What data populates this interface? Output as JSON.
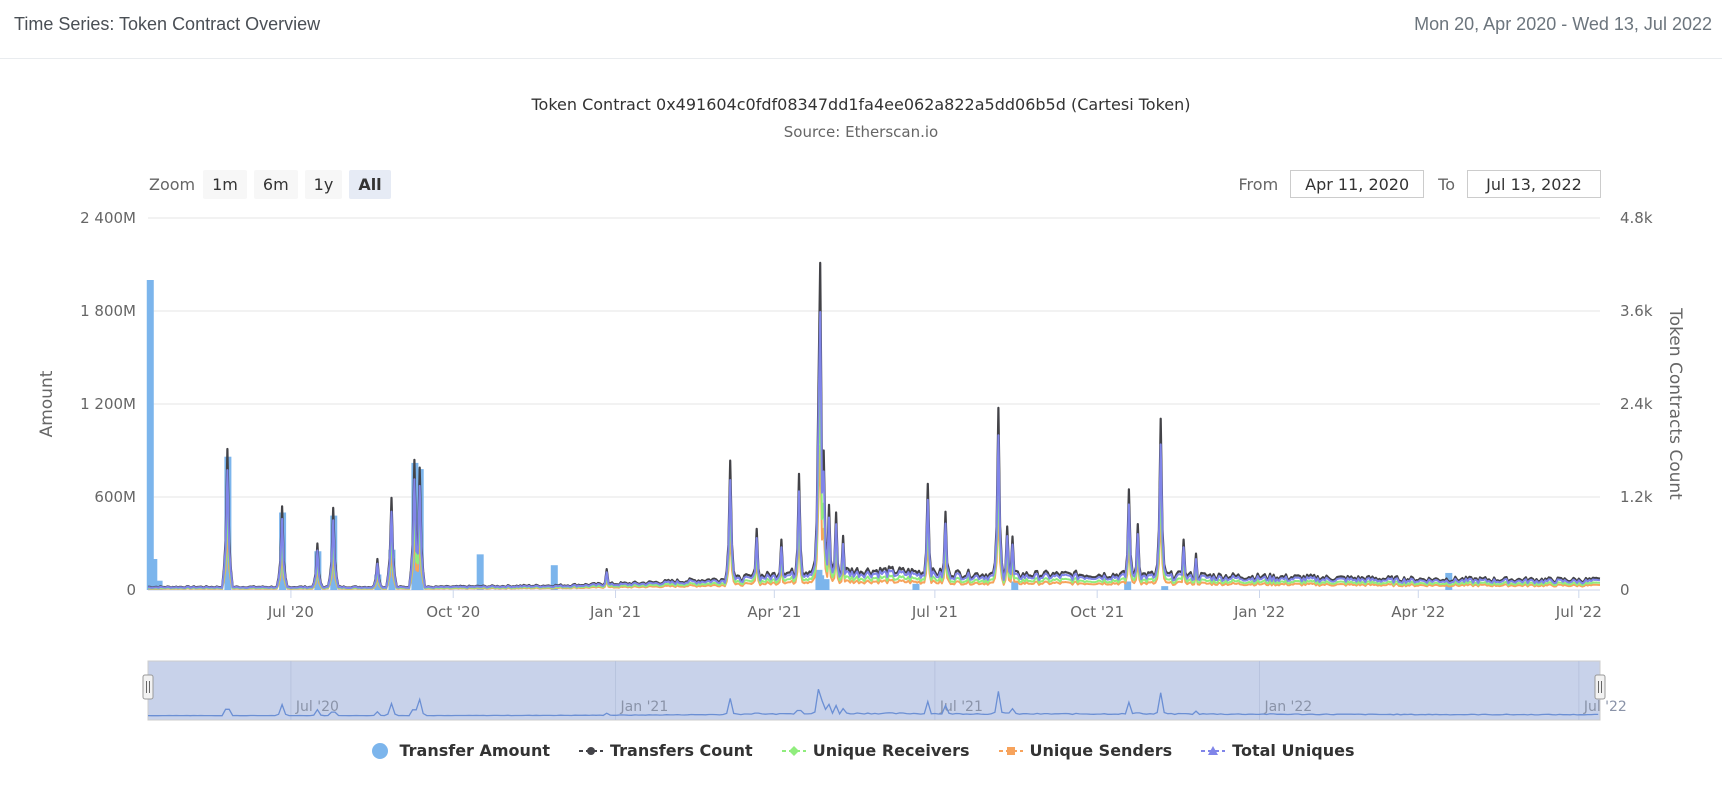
{
  "header": {
    "title": "Time Series: Token Contract Overview",
    "date_range": "Mon 20, Apr 2020 - Wed 13, Jul 2022"
  },
  "zoom": {
    "label": "Zoom",
    "buttons": [
      "1m",
      "6m",
      "1y",
      "All"
    ],
    "active": "All"
  },
  "range": {
    "from_label": "From",
    "from_value": "Apr 11, 2020",
    "to_label": "To",
    "to_value": "Jul 13, 2022"
  },
  "colors": {
    "transfer_amount": "#7cb5ec",
    "transfers_count": "#434348",
    "unique_receivers": "#90ed7d",
    "unique_senders": "#f7a35c",
    "total_uniques": "#8085e9",
    "navigator_mask": "#c8d2ea",
    "navigator_line": "#6b8fd4",
    "grid": "#e6e6e6"
  },
  "chart_data": {
    "type": "line",
    "title": "Token Contract 0x491604c0fdf08347dd1fa4ee062a822a5dd06b5d (Cartesi Token)",
    "subtitle": "Source: Etherscan.io",
    "x_range": [
      "2020-04-11",
      "2022-07-13"
    ],
    "x_ticks": [
      {
        "date": "2020-07-01",
        "label": "Jul '20"
      },
      {
        "date": "2020-10-01",
        "label": "Oct '20"
      },
      {
        "date": "2021-01-01",
        "label": "Jan '21"
      },
      {
        "date": "2021-04-01",
        "label": "Apr '21"
      },
      {
        "date": "2021-07-01",
        "label": "Jul '21"
      },
      {
        "date": "2021-10-01",
        "label": "Oct '21"
      },
      {
        "date": "2022-01-01",
        "label": "Jan '22"
      },
      {
        "date": "2022-04-01",
        "label": "Apr '22"
      },
      {
        "date": "2022-07-01",
        "label": "Jul '22"
      }
    ],
    "y_left": {
      "label": "Amount",
      "range": [
        0,
        2400
      ],
      "ticks": [
        {
          "value": 0,
          "label": "0"
        },
        {
          "value": 600,
          "label": "600M"
        },
        {
          "value": 1200,
          "label": "1 200M"
        },
        {
          "value": 1800,
          "label": "1 800M"
        },
        {
          "value": 2400,
          "label": "2 400M"
        }
      ]
    },
    "y_right": {
      "label": "Token Contracts Count",
      "range": [
        0,
        4800
      ],
      "ticks": [
        {
          "value": 0,
          "label": "0"
        },
        {
          "value": 1200,
          "label": "1.2k"
        },
        {
          "value": 2400,
          "label": "2.4k"
        },
        {
          "value": 3600,
          "label": "3.6k"
        },
        {
          "value": 4800,
          "label": "4.8k"
        }
      ]
    },
    "navigator_ticks": [
      "Jul '20",
      "Jan '21",
      "Jul '21",
      "Jan '22",
      "Jul '22"
    ],
    "series": [
      {
        "name": "Transfer Amount",
        "axis": "left",
        "style": "column",
        "points": [
          [
            "2020-04-12",
            2000
          ],
          [
            "2020-04-14",
            200
          ],
          [
            "2020-04-17",
            60
          ],
          [
            "2020-05-26",
            860
          ],
          [
            "2020-06-26",
            500
          ],
          [
            "2020-07-16",
            250
          ],
          [
            "2020-07-25",
            480
          ],
          [
            "2020-08-19",
            100
          ],
          [
            "2020-08-27",
            260
          ],
          [
            "2020-09-09",
            820
          ],
          [
            "2020-09-12",
            780
          ],
          [
            "2020-10-16",
            230
          ],
          [
            "2020-11-27",
            160
          ],
          [
            "2021-04-26",
            130
          ],
          [
            "2021-04-27",
            95
          ],
          [
            "2021-04-30",
            70
          ],
          [
            "2021-06-20",
            40
          ],
          [
            "2021-08-15",
            55
          ],
          [
            "2021-10-18",
            55
          ],
          [
            "2021-11-08",
            25
          ],
          [
            "2022-04-18",
            110
          ]
        ]
      },
      {
        "name": "Transfers Count",
        "axis": "right",
        "style": "line",
        "base": [
          [
            "2020-04-11",
            40
          ],
          [
            "2020-09-20",
            40
          ],
          [
            "2020-12-01",
            60
          ],
          [
            "2021-01-15",
            90
          ],
          [
            "2021-03-10",
            150
          ],
          [
            "2021-04-01",
            200
          ],
          [
            "2021-04-20",
            250
          ],
          [
            "2021-06-01",
            250
          ],
          [
            "2021-08-01",
            200
          ],
          [
            "2021-11-01",
            200
          ],
          [
            "2021-12-15",
            180
          ],
          [
            "2022-02-01",
            160
          ],
          [
            "2022-04-01",
            140
          ],
          [
            "2022-07-13",
            130
          ]
        ],
        "spikes": [
          [
            "2020-05-26",
            1820
          ],
          [
            "2020-06-26",
            1080
          ],
          [
            "2020-07-16",
            600
          ],
          [
            "2020-07-25",
            1060
          ],
          [
            "2020-08-19",
            400
          ],
          [
            "2020-08-27",
            1190
          ],
          [
            "2020-09-09",
            1680
          ],
          [
            "2020-09-12",
            1580
          ],
          [
            "2020-12-27",
            270
          ],
          [
            "2021-03-07",
            1670
          ],
          [
            "2021-03-22",
            790
          ],
          [
            "2021-04-05",
            650
          ],
          [
            "2021-04-15",
            1500
          ],
          [
            "2021-04-26",
            2550
          ],
          [
            "2021-04-27",
            4220
          ],
          [
            "2021-04-29",
            1800
          ],
          [
            "2021-05-02",
            1100
          ],
          [
            "2021-05-06",
            1000
          ],
          [
            "2021-05-10",
            700
          ],
          [
            "2021-06-27",
            1370
          ],
          [
            "2021-07-07",
            1010
          ],
          [
            "2021-08-06",
            2350
          ],
          [
            "2021-08-11",
            820
          ],
          [
            "2021-08-14",
            690
          ],
          [
            "2021-10-19",
            1300
          ],
          [
            "2021-10-24",
            850
          ],
          [
            "2021-11-06",
            2210
          ],
          [
            "2021-11-19",
            650
          ],
          [
            "2021-11-26",
            470
          ]
        ]
      },
      {
        "name": "Unique Receivers",
        "axis": "right",
        "style": "line",
        "scale": 0.62
      },
      {
        "name": "Unique Senders",
        "axis": "right",
        "style": "line",
        "scale": 0.44
      },
      {
        "name": "Total Uniques",
        "axis": "right",
        "style": "line",
        "scale": 0.85
      }
    ]
  },
  "legend": [
    {
      "key": "transfer_amount",
      "label": "Transfer Amount"
    },
    {
      "key": "transfers_count",
      "label": "Transfers Count"
    },
    {
      "key": "unique_receivers",
      "label": "Unique Receivers"
    },
    {
      "key": "unique_senders",
      "label": "Unique Senders"
    },
    {
      "key": "total_uniques",
      "label": "Total Uniques"
    }
  ]
}
